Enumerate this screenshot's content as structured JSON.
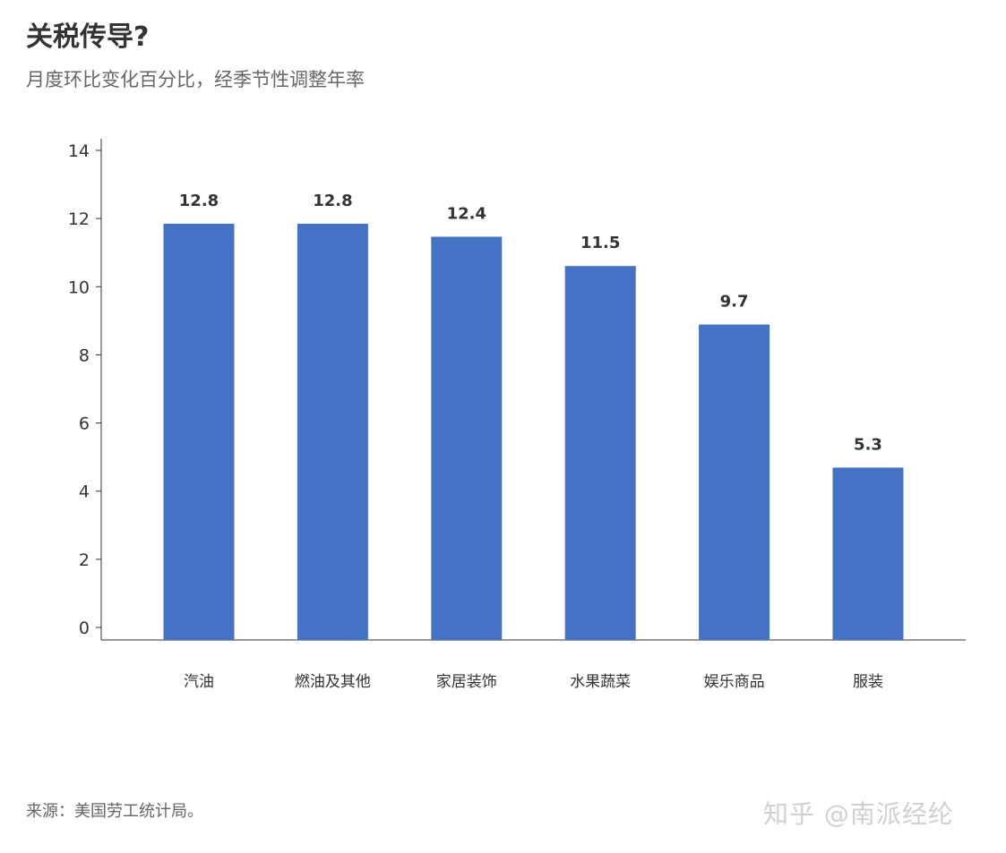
{
  "title": "关税传导?",
  "subtitle": "月度环比变化百分比，经季节性调整年率",
  "source": "来源：美国劳工统计局。",
  "watermark": "知乎 @南派经纶",
  "chart_data": {
    "type": "bar",
    "categories": [
      "汽油",
      "燃油及其他",
      "家居装饰",
      "水果蔬菜",
      "娱乐商品",
      "服装"
    ],
    "values": [
      12.8,
      12.8,
      12.4,
      11.5,
      9.7,
      5.3
    ],
    "data_labels": [
      "12.8",
      "12.8",
      "12.4",
      "11.5",
      "9.7",
      "5.3"
    ],
    "ylim": [
      0,
      14
    ],
    "yticks": [
      0,
      2,
      4,
      6,
      8,
      10,
      12,
      14
    ],
    "grid": false,
    "legend": "none",
    "bar_color": "#4472C4"
  }
}
